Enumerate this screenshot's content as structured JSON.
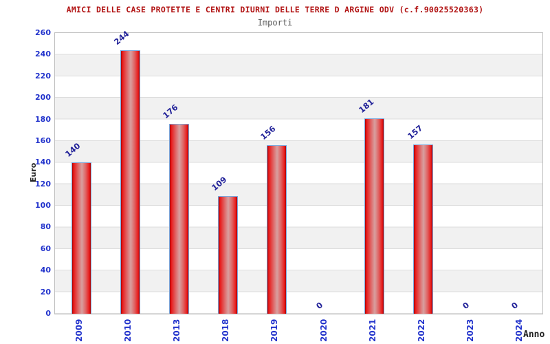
{
  "chart_data": {
    "type": "bar",
    "title": "AMICI DELLE CASE PROTETTE E CENTRI DIURNI DELLE TERRE D ARGINE ODV (c.f.90025520363)",
    "subtitle": "Importi",
    "xlabel": "Anno",
    "ylabel": "Euro",
    "categories": [
      "2009",
      "2010",
      "2013",
      "2018",
      "2019",
      "2020",
      "2021",
      "2022",
      "2023",
      "2024"
    ],
    "values": [
      140,
      244,
      176,
      109,
      156,
      0,
      181,
      157,
      0,
      0
    ],
    "ylim": [
      0,
      260
    ],
    "ytick_step": 20,
    "grid": true,
    "legend": "none",
    "colors": {
      "title": "#b11212",
      "subtitle": "#555555",
      "tick_labels": "#2233cc",
      "value_labels": "#222299",
      "axis_titles": "#222222",
      "bar_red": "#e81717",
      "bar_center_highlight": "#d8a0a0",
      "bar_border": "#7aa8dd",
      "band_gray": "#f1f1f1",
      "gridline": "#dcdcdc",
      "plot_border": "#bfbfbf",
      "background": "#ffffff"
    }
  }
}
